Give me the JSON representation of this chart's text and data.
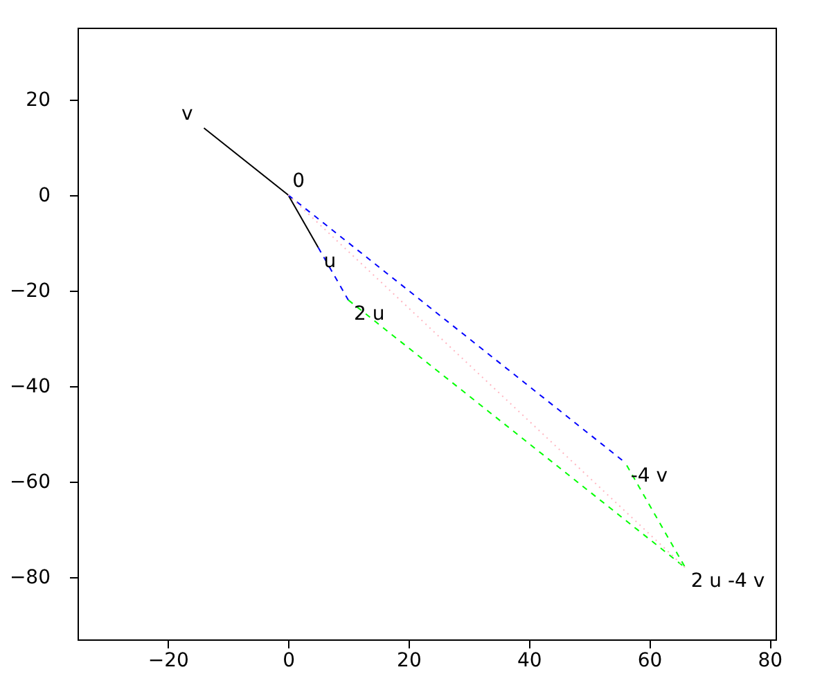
{
  "chart_data": {
    "type": "line",
    "series": [
      {
        "color": "#000000",
        "line_style": "solid",
        "x": [
          -14,
          0,
          5
        ],
        "values": [
          14,
          0,
          -11
        ]
      },
      {
        "color": "#0000ff",
        "line_style": "dashed",
        "x": [
          0,
          56
        ],
        "values": [
          0,
          -56
        ]
      },
      {
        "color": "#0000ff",
        "line_style": "dashed",
        "x": [
          5,
          10
        ],
        "values": [
          -11,
          -22
        ]
      },
      {
        "color": "#00ff00",
        "line_style": "dashed",
        "x": [
          10,
          66,
          56
        ],
        "values": [
          -22,
          -78,
          -56
        ]
      },
      {
        "color": "#ffb6c1",
        "line_style": "dotted",
        "x": [
          0,
          66
        ],
        "values": [
          0,
          -78
        ]
      }
    ],
    "annotations": [
      {
        "text": "v",
        "x": -14,
        "y": 14
      },
      {
        "text": "0",
        "x": 0,
        "y": 0
      },
      {
        "text": "u",
        "x": 5,
        "y": -11
      },
      {
        "text": "2 u",
        "x": 10,
        "y": -22
      },
      {
        "text": "-4 v",
        "x": 56,
        "y": -56
      },
      {
        "text": "2 u -4 v",
        "x": 66,
        "y": -78
      }
    ],
    "xlim": [
      -35,
      81
    ],
    "ylim": [
      -93,
      35
    ],
    "xticks": [
      -20,
      0,
      20,
      40,
      60,
      80
    ],
    "yticks": [
      -80,
      -60,
      -40,
      -20,
      0,
      20
    ],
    "grid": false
  }
}
